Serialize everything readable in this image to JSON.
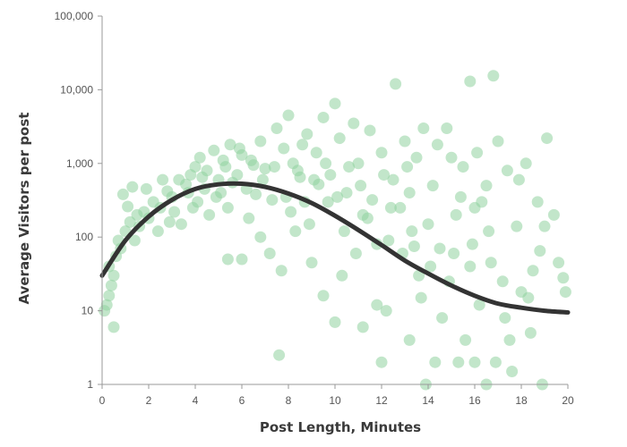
{
  "chart_data": {
    "type": "scatter",
    "title": "",
    "xlabel": "Post Length, Minutes",
    "ylabel": "Average Visitors per post",
    "xlim": [
      0,
      20
    ],
    "ylim": [
      1,
      100000
    ],
    "y_scale": "log",
    "grid": false,
    "x_ticks": [
      0,
      2,
      4,
      6,
      8,
      10,
      12,
      14,
      16,
      18,
      20
    ],
    "x_tick_labels": [
      "0",
      "2",
      "4",
      "6",
      "8",
      "10",
      "12",
      "14",
      "16",
      "18",
      "20"
    ],
    "y_ticks": [
      1,
      10,
      100,
      1000,
      10000,
      100000
    ],
    "y_tick_labels": [
      "1",
      "10",
      "100",
      "1,000",
      "10,000",
      "100,000"
    ],
    "colors": {
      "points": "#8fd19e",
      "curve": "#333333",
      "axis": "#999999"
    },
    "points": [
      {
        "x": 0.1,
        "y": 10
      },
      {
        "x": 0.2,
        "y": 12
      },
      {
        "x": 0.3,
        "y": 16
      },
      {
        "x": 0.4,
        "y": 22
      },
      {
        "x": 0.3,
        "y": 40
      },
      {
        "x": 0.5,
        "y": 30
      },
      {
        "x": 0.6,
        "y": 55
      },
      {
        "x": 0.8,
        "y": 70
      },
      {
        "x": 0.7,
        "y": 90
      },
      {
        "x": 1.0,
        "y": 120
      },
      {
        "x": 1.2,
        "y": 160
      },
      {
        "x": 1.5,
        "y": 200
      },
      {
        "x": 1.1,
        "y": 260
      },
      {
        "x": 0.9,
        "y": 380
      },
      {
        "x": 1.3,
        "y": 480
      },
      {
        "x": 1.6,
        "y": 140
      },
      {
        "x": 1.8,
        "y": 220
      },
      {
        "x": 2.0,
        "y": 180
      },
      {
        "x": 2.2,
        "y": 300
      },
      {
        "x": 2.5,
        "y": 250
      },
      {
        "x": 2.8,
        "y": 420
      },
      {
        "x": 3.0,
        "y": 350
      },
      {
        "x": 3.3,
        "y": 600
      },
      {
        "x": 3.6,
        "y": 520
      },
      {
        "x": 3.8,
        "y": 700
      },
      {
        "x": 2.4,
        "y": 120
      },
      {
        "x": 3.1,
        "y": 220
      },
      {
        "x": 4.0,
        "y": 900
      },
      {
        "x": 4.2,
        "y": 1200
      },
      {
        "x": 4.5,
        "y": 800
      },
      {
        "x": 4.8,
        "y": 1500
      },
      {
        "x": 5.0,
        "y": 600
      },
      {
        "x": 5.2,
        "y": 1100
      },
      {
        "x": 5.5,
        "y": 1800
      },
      {
        "x": 5.8,
        "y": 700
      },
      {
        "x": 6.0,
        "y": 1300
      },
      {
        "x": 6.2,
        "y": 450
      },
      {
        "x": 6.5,
        "y": 950
      },
      {
        "x": 6.8,
        "y": 2000
      },
      {
        "x": 7.0,
        "y": 850
      },
      {
        "x": 4.1,
        "y": 300
      },
      {
        "x": 4.6,
        "y": 200
      },
      {
        "x": 5.1,
        "y": 400
      },
      {
        "x": 5.4,
        "y": 250
      },
      {
        "x": 6.3,
        "y": 180
      },
      {
        "x": 5.4,
        "y": 50
      },
      {
        "x": 6.0,
        "y": 50
      },
      {
        "x": 6.8,
        "y": 100
      },
      {
        "x": 7.2,
        "y": 60
      },
      {
        "x": 7.5,
        "y": 3000
      },
      {
        "x": 7.8,
        "y": 1600
      },
      {
        "x": 8.0,
        "y": 4500
      },
      {
        "x": 8.2,
        "y": 1000
      },
      {
        "x": 8.5,
        "y": 650
      },
      {
        "x": 8.8,
        "y": 2500
      },
      {
        "x": 7.6,
        "y": 2.5
      },
      {
        "x": 7.7,
        "y": 35
      },
      {
        "x": 8.3,
        "y": 120
      },
      {
        "x": 8.7,
        "y": 300
      },
      {
        "x": 9.0,
        "y": 45
      },
      {
        "x": 9.2,
        "y": 1400
      },
      {
        "x": 9.5,
        "y": 4200
      },
      {
        "x": 9.8,
        "y": 700
      },
      {
        "x": 10.0,
        "y": 6500
      },
      {
        "x": 10.2,
        "y": 2200
      },
      {
        "x": 9.5,
        "y": 16
      },
      {
        "x": 10.0,
        "y": 7
      },
      {
        "x": 10.3,
        "y": 30
      },
      {
        "x": 10.5,
        "y": 400
      },
      {
        "x": 10.8,
        "y": 3500
      },
      {
        "x": 11.0,
        "y": 1000
      },
      {
        "x": 11.2,
        "y": 200
      },
      {
        "x": 11.5,
        "y": 2800
      },
      {
        "x": 11.8,
        "y": 80
      },
      {
        "x": 12.0,
        "y": 1400
      },
      {
        "x": 11.2,
        "y": 6
      },
      {
        "x": 11.8,
        "y": 12
      },
      {
        "x": 12.0,
        "y": 2
      },
      {
        "x": 12.2,
        "y": 10
      },
      {
        "x": 12.5,
        "y": 600
      },
      {
        "x": 12.6,
        "y": 12000
      },
      {
        "x": 12.8,
        "y": 250
      },
      {
        "x": 13.0,
        "y": 2000
      },
      {
        "x": 13.2,
        "y": 400
      },
      {
        "x": 13.5,
        "y": 1200
      },
      {
        "x": 13.2,
        "y": 4
      },
      {
        "x": 13.6,
        "y": 30
      },
      {
        "x": 13.8,
        "y": 3000
      },
      {
        "x": 14.0,
        "y": 150
      },
      {
        "x": 14.2,
        "y": 500
      },
      {
        "x": 13.9,
        "y": 1
      },
      {
        "x": 14.3,
        "y": 2
      },
      {
        "x": 14.6,
        "y": 8
      },
      {
        "x": 14.8,
        "y": 3000
      },
      {
        "x": 15.0,
        "y": 1200
      },
      {
        "x": 15.2,
        "y": 200
      },
      {
        "x": 15.5,
        "y": 900
      },
      {
        "x": 15.8,
        "y": 40
      },
      {
        "x": 15.8,
        "y": 13000
      },
      {
        "x": 16.0,
        "y": 250
      },
      {
        "x": 15.3,
        "y": 2
      },
      {
        "x": 15.6,
        "y": 4
      },
      {
        "x": 16.2,
        "y": 12
      },
      {
        "x": 16.5,
        "y": 500
      },
      {
        "x": 16.8,
        "y": 15500
      },
      {
        "x": 16.0,
        "y": 2
      },
      {
        "x": 16.5,
        "y": 1
      },
      {
        "x": 16.9,
        "y": 2
      },
      {
        "x": 17.0,
        "y": 2000
      },
      {
        "x": 17.3,
        "y": 8
      },
      {
        "x": 17.5,
        "y": 4
      },
      {
        "x": 17.6,
        "y": 1.5
      },
      {
        "x": 17.8,
        "y": 140
      },
      {
        "x": 18.0,
        "y": 18
      },
      {
        "x": 18.2,
        "y": 1000
      },
      {
        "x": 18.4,
        "y": 5
      },
      {
        "x": 18.5,
        "y": 35
      },
      {
        "x": 18.7,
        "y": 300
      },
      {
        "x": 18.8,
        "y": 65
      },
      {
        "x": 18.9,
        "y": 1
      },
      {
        "x": 19.0,
        "y": 140
      },
      {
        "x": 19.1,
        "y": 2200
      },
      {
        "x": 19.4,
        "y": 200
      },
      {
        "x": 19.6,
        "y": 45
      },
      {
        "x": 19.8,
        "y": 28
      },
      {
        "x": 19.9,
        "y": 18
      },
      {
        "x": 0.5,
        "y": 6
      },
      {
        "x": 1.4,
        "y": 90
      },
      {
        "x": 2.6,
        "y": 600
      },
      {
        "x": 3.4,
        "y": 150
      },
      {
        "x": 3.9,
        "y": 250
      },
      {
        "x": 4.4,
        "y": 450
      },
      {
        "x": 4.9,
        "y": 350
      },
      {
        "x": 5.6,
        "y": 550
      },
      {
        "x": 6.6,
        "y": 380
      },
      {
        "x": 7.3,
        "y": 320
      },
      {
        "x": 8.1,
        "y": 220
      },
      {
        "x": 8.9,
        "y": 150
      },
      {
        "x": 9.3,
        "y": 520
      },
      {
        "x": 9.7,
        "y": 300
      },
      {
        "x": 10.4,
        "y": 120
      },
      {
        "x": 10.9,
        "y": 60
      },
      {
        "x": 11.4,
        "y": 180
      },
      {
        "x": 12.3,
        "y": 90
      },
      {
        "x": 12.9,
        "y": 60
      },
      {
        "x": 13.3,
        "y": 120
      },
      {
        "x": 13.7,
        "y": 15
      },
      {
        "x": 14.1,
        "y": 40
      },
      {
        "x": 14.5,
        "y": 70
      },
      {
        "x": 14.9,
        "y": 25
      },
      {
        "x": 15.1,
        "y": 60
      },
      {
        "x": 15.9,
        "y": 80
      },
      {
        "x": 16.3,
        "y": 300
      },
      {
        "x": 16.7,
        "y": 45
      },
      {
        "x": 17.2,
        "y": 25
      },
      {
        "x": 17.9,
        "y": 600
      },
      {
        "x": 18.3,
        "y": 15
      },
      {
        "x": 1.9,
        "y": 450
      },
      {
        "x": 2.9,
        "y": 160
      },
      {
        "x": 3.7,
        "y": 400
      },
      {
        "x": 4.3,
        "y": 650
      },
      {
        "x": 5.3,
        "y": 900
      },
      {
        "x": 5.9,
        "y": 1600
      },
      {
        "x": 6.4,
        "y": 1100
      },
      {
        "x": 6.9,
        "y": 600
      },
      {
        "x": 7.4,
        "y": 900
      },
      {
        "x": 7.9,
        "y": 350
      },
      {
        "x": 8.4,
        "y": 800
      },
      {
        "x": 8.6,
        "y": 1800
      },
      {
        "x": 9.1,
        "y": 600
      },
      {
        "x": 9.6,
        "y": 1000
      },
      {
        "x": 10.1,
        "y": 350
      },
      {
        "x": 10.6,
        "y": 900
      },
      {
        "x": 11.1,
        "y": 500
      },
      {
        "x": 11.6,
        "y": 320
      },
      {
        "x": 12.1,
        "y": 700
      },
      {
        "x": 12.4,
        "y": 250
      },
      {
        "x": 13.1,
        "y": 900
      },
      {
        "x": 13.4,
        "y": 75
      },
      {
        "x": 14.4,
        "y": 1800
      },
      {
        "x": 15.4,
        "y": 350
      },
      {
        "x": 16.1,
        "y": 1400
      },
      {
        "x": 16.6,
        "y": 120
      },
      {
        "x": 17.4,
        "y": 800
      }
    ],
    "series": [
      {
        "type": "line",
        "x": [
          0,
          1,
          2,
          3,
          4,
          5,
          6,
          7,
          8,
          9,
          10,
          11,
          12,
          13,
          14,
          15,
          16,
          17,
          18,
          19,
          20
        ],
        "y": [
          30,
          90,
          190,
          320,
          450,
          520,
          530,
          480,
          390,
          290,
          195,
          125,
          78,
          48,
          32,
          22,
          16,
          12.5,
          11,
          10,
          9.5
        ]
      }
    ]
  }
}
